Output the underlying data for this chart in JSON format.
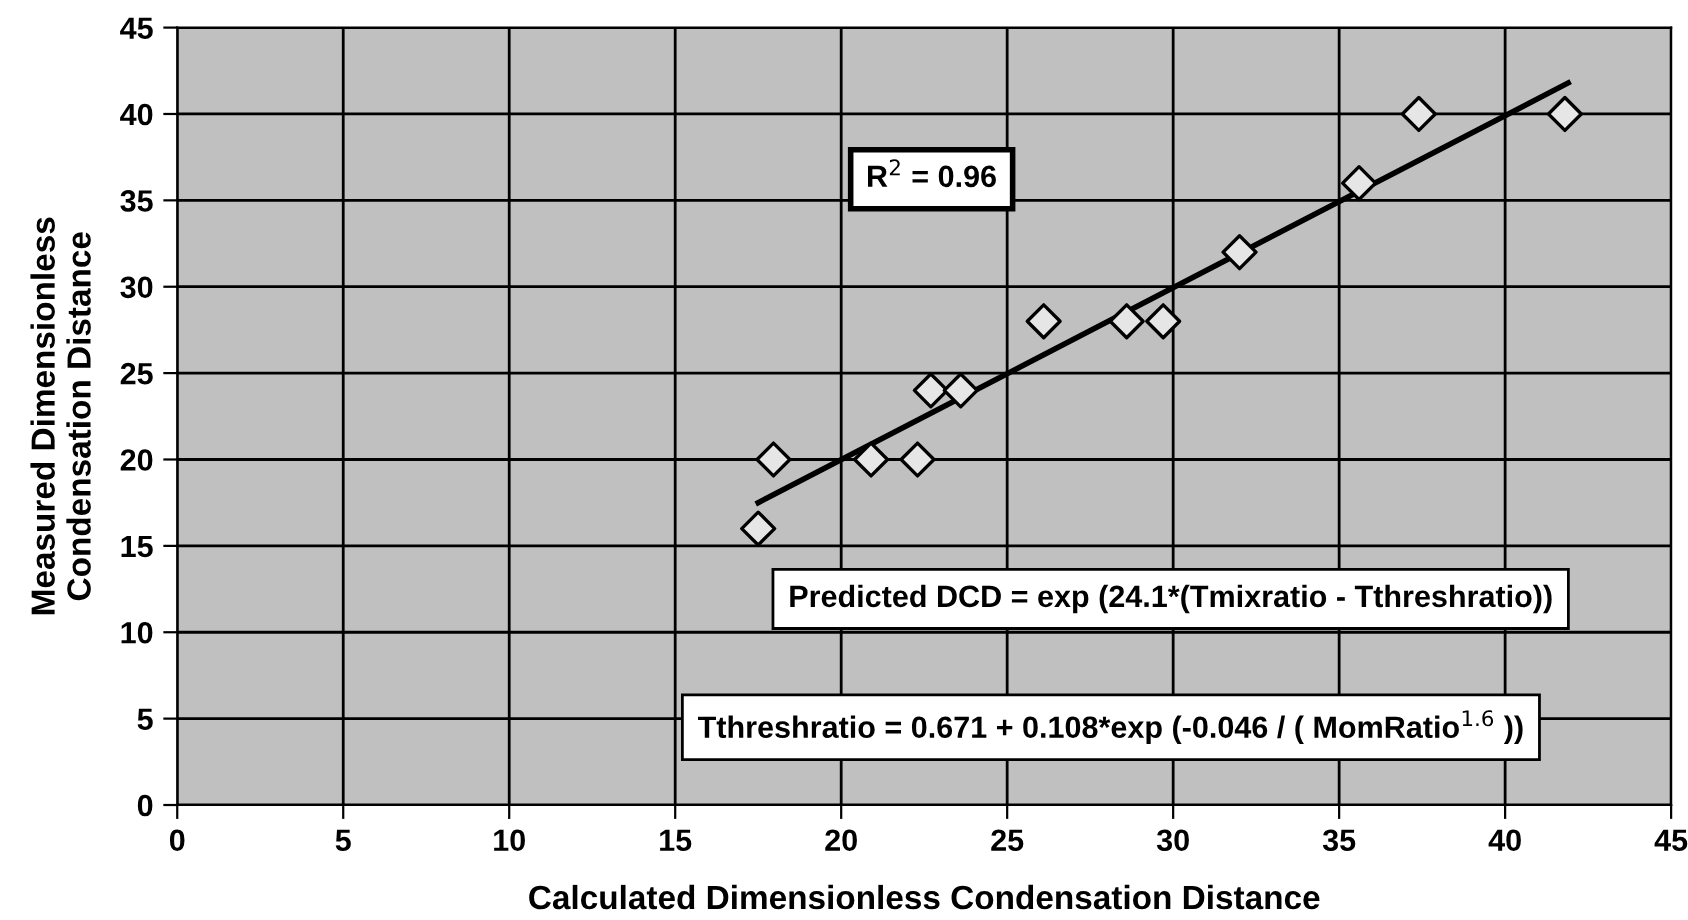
{
  "chart_data": {
    "type": "scatter",
    "xlabel": "Calculated Dimensionless Condensation Distance",
    "ylabel": "Measured Dimensionless\nCondensation Distance",
    "xlim": [
      0,
      45
    ],
    "xticks": [
      0,
      5,
      10,
      15,
      20,
      25,
      30,
      35,
      40,
      45
    ],
    "ylim": [
      0,
      45
    ],
    "yticks": [
      0,
      5,
      10,
      15,
      20,
      25,
      30,
      35,
      40,
      45
    ],
    "grid": true,
    "series": [
      {
        "marker": "diamond",
        "color": "#e6e6e6",
        "x": [
          17.5,
          17.96,
          20.9,
          22.3,
          22.7,
          23.6,
          26.1,
          28.6,
          29.7,
          32.0,
          35.6,
          37.4,
          41.8
        ],
        "values": [
          16,
          20,
          20,
          20,
          24,
          24,
          28,
          28,
          28,
          32,
          36,
          40,
          40
        ]
      },
      {
        "type": "line",
        "color": "#000000",
        "line_style": "solid",
        "x": [
          17.5,
          41.9
        ],
        "values": [
          17.5,
          41.8
        ]
      }
    ],
    "annotations": [
      "R$^{2}$ = 0.96",
      "Predicted DCD = exp (24.1*(Tmixratio - Tthreshratio))",
      "Tthreshratio = 0.671 + 0.108*exp (-0.046 / ( MomRatio$^{1.6}$ ))"
    ]
  }
}
